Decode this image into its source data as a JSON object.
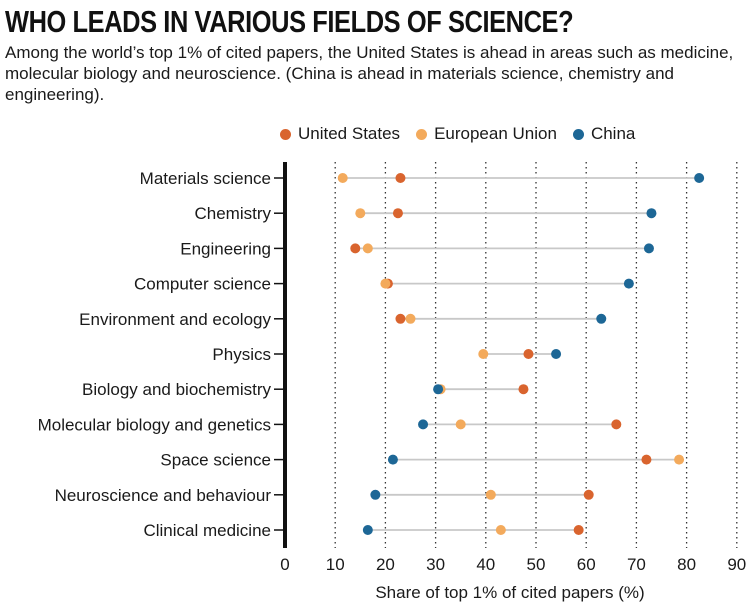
{
  "header": {
    "title": "WHO LEADS IN VARIOUS FIELDS OF SCIENCE?",
    "subtitle": "Among the world’s top 1% of cited papers, the United States is ahead in areas such as medicine, molecular biology and neuroscience. (China is ahead in materials science, chemistry and engineering)."
  },
  "colors": {
    "us": "#d9642e",
    "eu": "#f3aa5c",
    "china": "#1d6796",
    "connector": "#c8c8c8",
    "axis": "#111111"
  },
  "chart_data": {
    "type": "scatter",
    "title": "WHO LEADS IN VARIOUS FIELDS OF SCIENCE?",
    "xlabel": "Share of top 1% of cited papers (%)",
    "ylabel": "",
    "xlim": [
      0,
      90
    ],
    "xticks": [
      0,
      10,
      20,
      30,
      40,
      50,
      60,
      70,
      80,
      90
    ],
    "grid": "dotted vertical",
    "legend_position": "top",
    "categories": [
      "Materials science",
      "Chemistry",
      "Engineering",
      "Computer science",
      "Environment and ecology",
      "Physics",
      "Biology and biochemistry",
      "Molecular biology and genetics",
      "Space science",
      "Neuroscience and behaviour",
      "Clinical medicine"
    ],
    "series": [
      {
        "name": "United States",
        "key": "us",
        "values": [
          23,
          22.5,
          14,
          20.5,
          23,
          48.5,
          47.5,
          66,
          72,
          60.5,
          58.5
        ]
      },
      {
        "name": "European Union",
        "key": "eu",
        "values": [
          11.5,
          15,
          16.5,
          20,
          25,
          39.5,
          31,
          35,
          78.5,
          41,
          43
        ]
      },
      {
        "name": "China",
        "key": "china",
        "values": [
          82.5,
          73,
          72.5,
          68.5,
          63,
          54,
          30.5,
          27.5,
          21.5,
          18,
          16.5
        ]
      }
    ]
  }
}
